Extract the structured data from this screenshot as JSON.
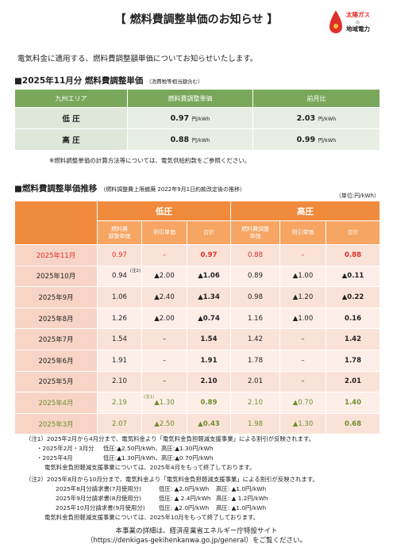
{
  "header": {
    "title": "【 燃料費調整単価のお知らせ 】",
    "logo": [
      "太陽ガス",
      "の",
      "地域電力"
    ]
  },
  "intro": "電気料金に適用する、燃料費調整額単価についてお知らせいたします。",
  "section1": {
    "heading": "■2025年11月分 燃料費調整単価",
    "sub": "（消費税等相当額含む）",
    "table": {
      "headers": [
        "九州エリア",
        "燃料費調整単価",
        "前月比"
      ],
      "rows": [
        [
          "低 圧",
          "0.97",
          "円/kWh",
          "2.03",
          "円/kWh"
        ],
        [
          "高 圧",
          "0.88",
          "円/kWh",
          "0.99",
          "円/kWh"
        ]
      ]
    },
    "note": "※燃料調整単価の計算方法等については、電気供給約款をご参照ください。"
  },
  "section2": {
    "heading": "■燃料費調整単価推移",
    "sub": "（燃料調整費上限撤廃 2022年9月1日約款改定後の推移）",
    "unit": "（単位:円/kWh）",
    "table": {
      "groups": [
        "低圧",
        "高圧"
      ],
      "subheaders": [
        "燃料費\n調整単価",
        "割引単価",
        "合計",
        "燃料費調整\n単価",
        "割引単価",
        "合計"
      ],
      "rows": [
        {
          "label": "2025年11月",
          "color": "#e0302a",
          "cells": [
            "0.97",
            "–",
            "0.97",
            "0.88",
            "–",
            "0.88"
          ]
        },
        {
          "label": "2025年10月",
          "cells": [
            {
              "text": "0.94",
              "note": "(注2)"
            },
            "▲2.00",
            "▲1.06",
            "0.89",
            "▲1.00",
            "▲0.11"
          ]
        },
        {
          "label": "2025年9月",
          "cells": [
            "1.06",
            "▲2.40",
            "▲1.34",
            "0.98",
            "▲1.20",
            "▲0.22"
          ]
        },
        {
          "label": "2025年8月",
          "cells": [
            "1.26",
            "▲2.00",
            "▲0.74",
            "1.16",
            "▲1.00",
            "0.16"
          ]
        },
        {
          "label": "2025年7月",
          "cells": [
            "1.54",
            "–",
            "1.54",
            "1.42",
            "–",
            "1.42"
          ]
        },
        {
          "label": "2025年6月",
          "cells": [
            "1.91",
            "–",
            "1.91",
            "1.78",
            "–",
            "1.78"
          ]
        },
        {
          "label": "2025年5月",
          "cells": [
            "2.10",
            "–",
            "2.10",
            "2.01",
            "–",
            "2.01"
          ]
        },
        {
          "label": "2025年4月",
          "color": "#6f8f2f",
          "cells": [
            "2.19",
            {
              "text": "▲1.30",
              "note": "(注1)"
            },
            "0.89",
            "2.10",
            "▲0.70",
            "1.40"
          ]
        },
        {
          "label": "2025年3月",
          "color": "#6f8f2f",
          "cells": [
            "2.07",
            "▲2.50",
            "▲0.43",
            "1.98",
            "▲1.30",
            "0.68"
          ]
        }
      ]
    }
  },
  "notes": [
    {
      "text": "（注1）2025年2月から4月分まで、電気料金より「電気料金負担軽減支援事業」による割引が反映されます。"
    },
    {
      "cols": [
        "・2025年2月・3月分",
        "低圧:▲2.50円/kWh、高圧:▲1.30円/kWh"
      ]
    },
    {
      "cols": [
        "・2025年4月",
        "低圧:▲1.30円/kWh、高圧:▲0.70円/kWh"
      ]
    },
    {
      "text": "電気料金負担軽減支援事業については、2025年4月をもって終了しております。",
      "indent": true
    },
    {
      "text": "（注2）2025年8月から10月分まで、電気料金より「電気料金負担軽減支援事業」による割引が反映されます。"
    },
    {
      "cols": [
        "2025年8月分請求書(7月使用分)",
        "低圧: ▲2.0円/kWh",
        "高圧: ▲1.0円/kWh"
      ]
    },
    {
      "cols": [
        "2025年9月分請求書(8月使用分)",
        "低圧: ▲ 2.4円/kWh",
        "高圧: ▲ 1.2円/kWh"
      ]
    },
    {
      "cols": [
        "2025年10月分請求書(9月使用分)",
        "低圧: ▲2.0円/kWh",
        "高圧: ▲1.0円/kWh"
      ]
    },
    {
      "text": "電気料金負担軽減支援事業については、2025年10月をもって終了しております。",
      "indent": true
    }
  ],
  "footer": [
    "本事業の詳細は、経済産業省エネルギー庁特設サイト",
    "（https://denkigas-gekihenkanwa.go.jp/general）をご覧ください。"
  ]
}
